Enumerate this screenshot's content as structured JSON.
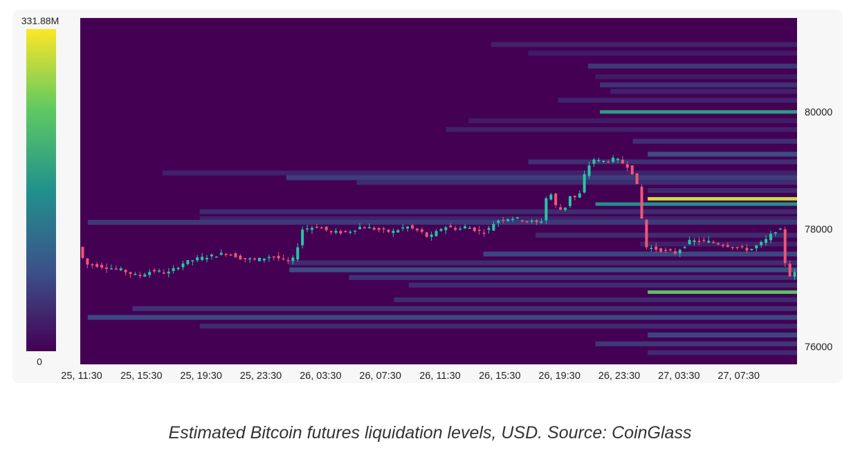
{
  "caption": "Estimated Bitcoin futures liquidation levels, USD. Source: CoinGlass",
  "chart_data": {
    "type": "heatmap",
    "title": "",
    "colorbar": {
      "min_label": "0",
      "max_label": "331.88M",
      "min": 0,
      "max": 331.88,
      "colors": [
        "#440154",
        "#3b528b",
        "#21918c",
        "#5ec962",
        "#fde725"
      ]
    },
    "x_ticks": [
      "25, 11:30",
      "25, 15:30",
      "25, 19:30",
      "25, 23:30",
      "26, 03:30",
      "26, 07:30",
      "26, 11:30",
      "26, 15:30",
      "26, 19:30",
      "26, 23:30",
      "27, 03:30",
      "27, 07:30"
    ],
    "y_ticks": [
      "80000",
      "78000",
      "76000"
    ],
    "y_range": [
      75700,
      81600
    ],
    "x_range_hours": [
      0,
      48
    ],
    "background_color": "#440154",
    "liquidation_bands": [
      {
        "price": 81150,
        "start_hour": 27.5,
        "intensity": 0.12
      },
      {
        "price": 81000,
        "start_hour": 30.0,
        "intensity": 0.1
      },
      {
        "price": 80780,
        "start_hour": 34.0,
        "intensity": 0.2
      },
      {
        "price": 80600,
        "start_hour": 34.5,
        "intensity": 0.1
      },
      {
        "price": 80460,
        "start_hour": 34.8,
        "intensity": 0.18
      },
      {
        "price": 80350,
        "start_hour": 35.5,
        "intensity": 0.12
      },
      {
        "price": 80200,
        "start_hour": 32.0,
        "intensity": 0.13
      },
      {
        "price": 80000,
        "start_hour": 34.8,
        "intensity": 0.55
      },
      {
        "price": 79850,
        "start_hour": 26.0,
        "intensity": 0.1
      },
      {
        "price": 79700,
        "start_hour": 24.5,
        "intensity": 0.12
      },
      {
        "price": 79500,
        "start_hour": 37.0,
        "intensity": 0.17
      },
      {
        "price": 79280,
        "start_hour": 38.0,
        "intensity": 0.28
      },
      {
        "price": 79150,
        "start_hour": 30.0,
        "intensity": 0.17
      },
      {
        "price": 78960,
        "start_hour": 5.5,
        "intensity": 0.12
      },
      {
        "price": 78880,
        "start_hour": 13.8,
        "intensity": 0.22
      },
      {
        "price": 78800,
        "start_hour": 18.5,
        "intensity": 0.15
      },
      {
        "price": 78660,
        "start_hour": 38.0,
        "intensity": 0.15
      },
      {
        "price": 78520,
        "start_hour": 38.0,
        "intensity": 0.92
      },
      {
        "price": 78430,
        "start_hour": 34.5,
        "intensity": 0.5
      },
      {
        "price": 78300,
        "start_hour": 8.0,
        "intensity": 0.15
      },
      {
        "price": 78180,
        "start_hour": 8.0,
        "intensity": 0.12
      },
      {
        "price": 78120,
        "start_hour": 0.5,
        "intensity": 0.2
      },
      {
        "price": 77900,
        "start_hour": 30.5,
        "intensity": 0.15
      },
      {
        "price": 77750,
        "start_hour": 37.5,
        "intensity": 0.12
      },
      {
        "price": 77580,
        "start_hour": 27.0,
        "intensity": 0.25
      },
      {
        "price": 77430,
        "start_hour": 14.0,
        "intensity": 0.15
      },
      {
        "price": 77310,
        "start_hour": 14.0,
        "intensity": 0.28
      },
      {
        "price": 77180,
        "start_hour": 18.0,
        "intensity": 0.18
      },
      {
        "price": 77050,
        "start_hour": 22.0,
        "intensity": 0.15
      },
      {
        "price": 76930,
        "start_hour": 38.0,
        "intensity": 0.72
      },
      {
        "price": 76800,
        "start_hour": 21.0,
        "intensity": 0.15
      },
      {
        "price": 76650,
        "start_hour": 3.5,
        "intensity": 0.18
      },
      {
        "price": 76500,
        "start_hour": 0.5,
        "intensity": 0.25
      },
      {
        "price": 76350,
        "start_hour": 8.0,
        "intensity": 0.15
      },
      {
        "price": 76200,
        "start_hour": 38.0,
        "intensity": 0.25
      },
      {
        "price": 76050,
        "start_hour": 34.5,
        "intensity": 0.2
      },
      {
        "price": 75900,
        "start_hour": 38.0,
        "intensity": 0.15
      }
    ],
    "price_path": [
      [
        0.0,
        77700
      ],
      [
        0.5,
        77400
      ],
      [
        1.0,
        77400
      ],
      [
        2.0,
        77350
      ],
      [
        3.0,
        77300
      ],
      [
        4.0,
        77200
      ],
      [
        5.0,
        77300
      ],
      [
        6.0,
        77250
      ],
      [
        7.0,
        77420
      ],
      [
        8.0,
        77500
      ],
      [
        9.0,
        77550
      ],
      [
        10.0,
        77600
      ],
      [
        11.0,
        77500
      ],
      [
        12.0,
        77480
      ],
      [
        13.0,
        77550
      ],
      [
        14.0,
        77450
      ],
      [
        14.5,
        77500
      ],
      [
        15.0,
        78000
      ],
      [
        16.0,
        78050
      ],
      [
        17.0,
        77950
      ],
      [
        18.0,
        77950
      ],
      [
        19.0,
        78050
      ],
      [
        20.0,
        78000
      ],
      [
        21.0,
        77950
      ],
      [
        22.0,
        78050
      ],
      [
        23.0,
        77950
      ],
      [
        23.5,
        77850
      ],
      [
        24.5,
        78050
      ],
      [
        25.5,
        78000
      ],
      [
        26.0,
        78050
      ],
      [
        27.0,
        77950
      ],
      [
        27.5,
        78000
      ],
      [
        28.0,
        78150
      ],
      [
        29.0,
        78200
      ],
      [
        30.0,
        78150
      ],
      [
        31.0,
        78100
      ],
      [
        31.5,
        78700
      ],
      [
        32.0,
        78400
      ],
      [
        32.5,
        78300
      ],
      [
        33.0,
        78600
      ],
      [
        33.5,
        78500
      ],
      [
        34.0,
        79000
      ],
      [
        34.5,
        79200
      ],
      [
        35.0,
        79150
      ],
      [
        36.0,
        79200
      ],
      [
        37.0,
        79050
      ],
      [
        37.5,
        78700
      ],
      [
        38.0,
        77700
      ],
      [
        39.0,
        77650
      ],
      [
        40.0,
        77600
      ],
      [
        41.0,
        77800
      ],
      [
        42.0,
        77800
      ],
      [
        43.0,
        77750
      ],
      [
        44.0,
        77700
      ],
      [
        45.0,
        77650
      ],
      [
        46.0,
        77800
      ],
      [
        47.0,
        78050
      ],
      [
        47.5,
        77200
      ],
      [
        48.0,
        77250
      ]
    ]
  }
}
